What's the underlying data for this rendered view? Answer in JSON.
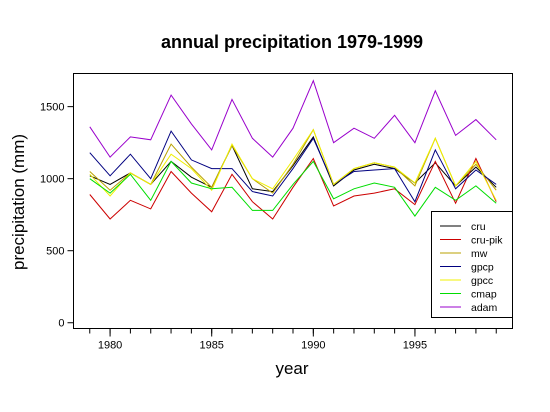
{
  "chart_data": {
    "type": "line",
    "title": "annual precipitation 1979-1999",
    "xlabel": "year",
    "ylabel": "precipitation (mm)",
    "xlim": [
      1978.2,
      1999.8
    ],
    "ylim": [
      -40,
      1730
    ],
    "x_ticks": [
      1980,
      1985,
      1990,
      1995
    ],
    "y_ticks": [
      0,
      500,
      1000,
      1500
    ],
    "grid": false,
    "legend_position": "bottom-right",
    "x": [
      1979,
      1980,
      1981,
      1982,
      1983,
      1984,
      1985,
      1986,
      1987,
      1988,
      1989,
      1990,
      1991,
      1992,
      1993,
      1994,
      1995,
      1996,
      1997,
      1998,
      1999
    ],
    "series": [
      {
        "name": "cru",
        "color": "#000000",
        "values": [
          1020,
          960,
          1040,
          960,
          1120,
          1010,
          940,
          1230,
          930,
          910,
          1090,
          1290,
          950,
          1060,
          1100,
          1070,
          970,
          1110,
          950,
          1080,
          940
        ]
      },
      {
        "name": "cru-pik",
        "color": "#cc0000",
        "values": [
          890,
          720,
          850,
          790,
          1050,
          900,
          770,
          1030,
          840,
          720,
          940,
          1140,
          810,
          880,
          900,
          930,
          820,
          1120,
          830,
          1140,
          840
        ]
      },
      {
        "name": "mw",
        "color": "#b8a000",
        "values": [
          1050,
          920,
          1040,
          960,
          1240,
          1080,
          940,
          1230,
          1000,
          900,
          1100,
          1340,
          960,
          1070,
          1110,
          1080,
          950,
          1280,
          950,
          1100,
          920
        ]
      },
      {
        "name": "gpcp",
        "color": "#000080",
        "values": [
          1180,
          1020,
          1170,
          1000,
          1330,
          1130,
          1070,
          1070,
          910,
          880,
          1070,
          1280,
          960,
          1050,
          1060,
          1070,
          840,
          1200,
          930,
          1060,
          960
        ]
      },
      {
        "name": "gpcc",
        "color": "#f0f000",
        "values": [
          1030,
          880,
          1040,
          960,
          1170,
          1070,
          920,
          1240,
          1000,
          930,
          1130,
          1340,
          960,
          1070,
          1110,
          1080,
          970,
          1280,
          950,
          1120,
          850
        ]
      },
      {
        "name": "cmap",
        "color": "#00dd00",
        "values": [
          1000,
          900,
          1030,
          850,
          1120,
          970,
          930,
          940,
          780,
          780,
          960,
          1120,
          860,
          930,
          970,
          940,
          740,
          940,
          850,
          950,
          830
        ]
      },
      {
        "name": "adam",
        "color": "#9900cc",
        "values": [
          1360,
          1150,
          1290,
          1270,
          1580,
          1380,
          1200,
          1550,
          1280,
          1150,
          1350,
          1680,
          1250,
          1350,
          1280,
          1440,
          1250,
          1610,
          1300,
          1410,
          1270
        ]
      }
    ]
  }
}
